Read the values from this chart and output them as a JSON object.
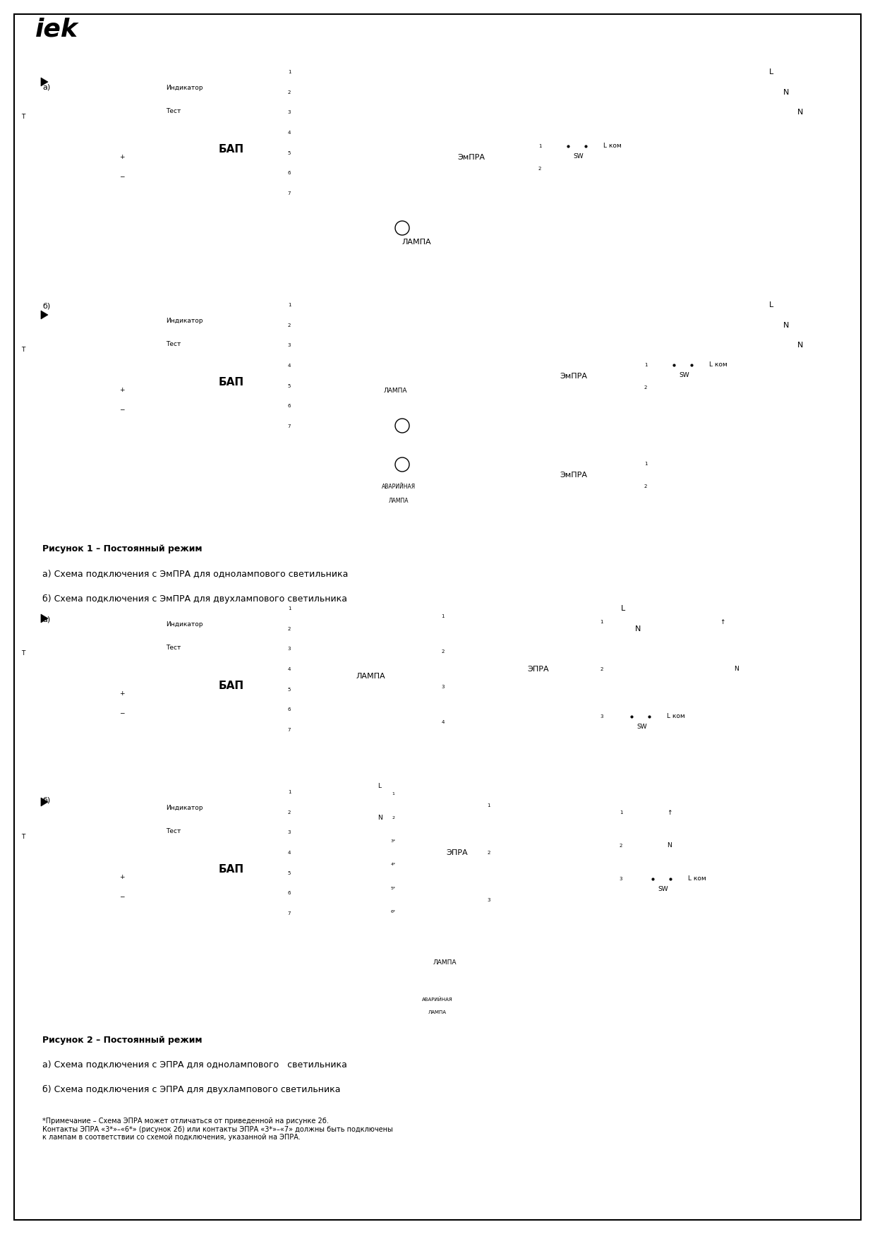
{
  "fig_width": 12.4,
  "fig_height": 17.48,
  "dpi": 100,
  "caption1_title": "Рисунок 1 – Постоянный режим",
  "caption1a": "а) Схема подключения с ЭмПРА для однолампового светильника",
  "caption1b": "б) Схема подключения с ЭмПРА для двухлампового светильника",
  "caption2_title": "Рисунок 2 – Постоянный режим",
  "caption2a": "а) Схема подключения с ЭПРА для однолампового   светильника",
  "caption2b": "б) Схема подключения с ЭПРА для двухлампового светильника",
  "note": "*Примечание – Схема ЭПРА может отличаться от приведенной на рисунке 2б.\nКонтакты ЭПРА «3*»–«6*» (рисунок 2б) или контакты ЭПРА «3*»–«7» должны быть подключены\nк лампам в соответствии со схемой подключения, указанной на ЭПРА."
}
